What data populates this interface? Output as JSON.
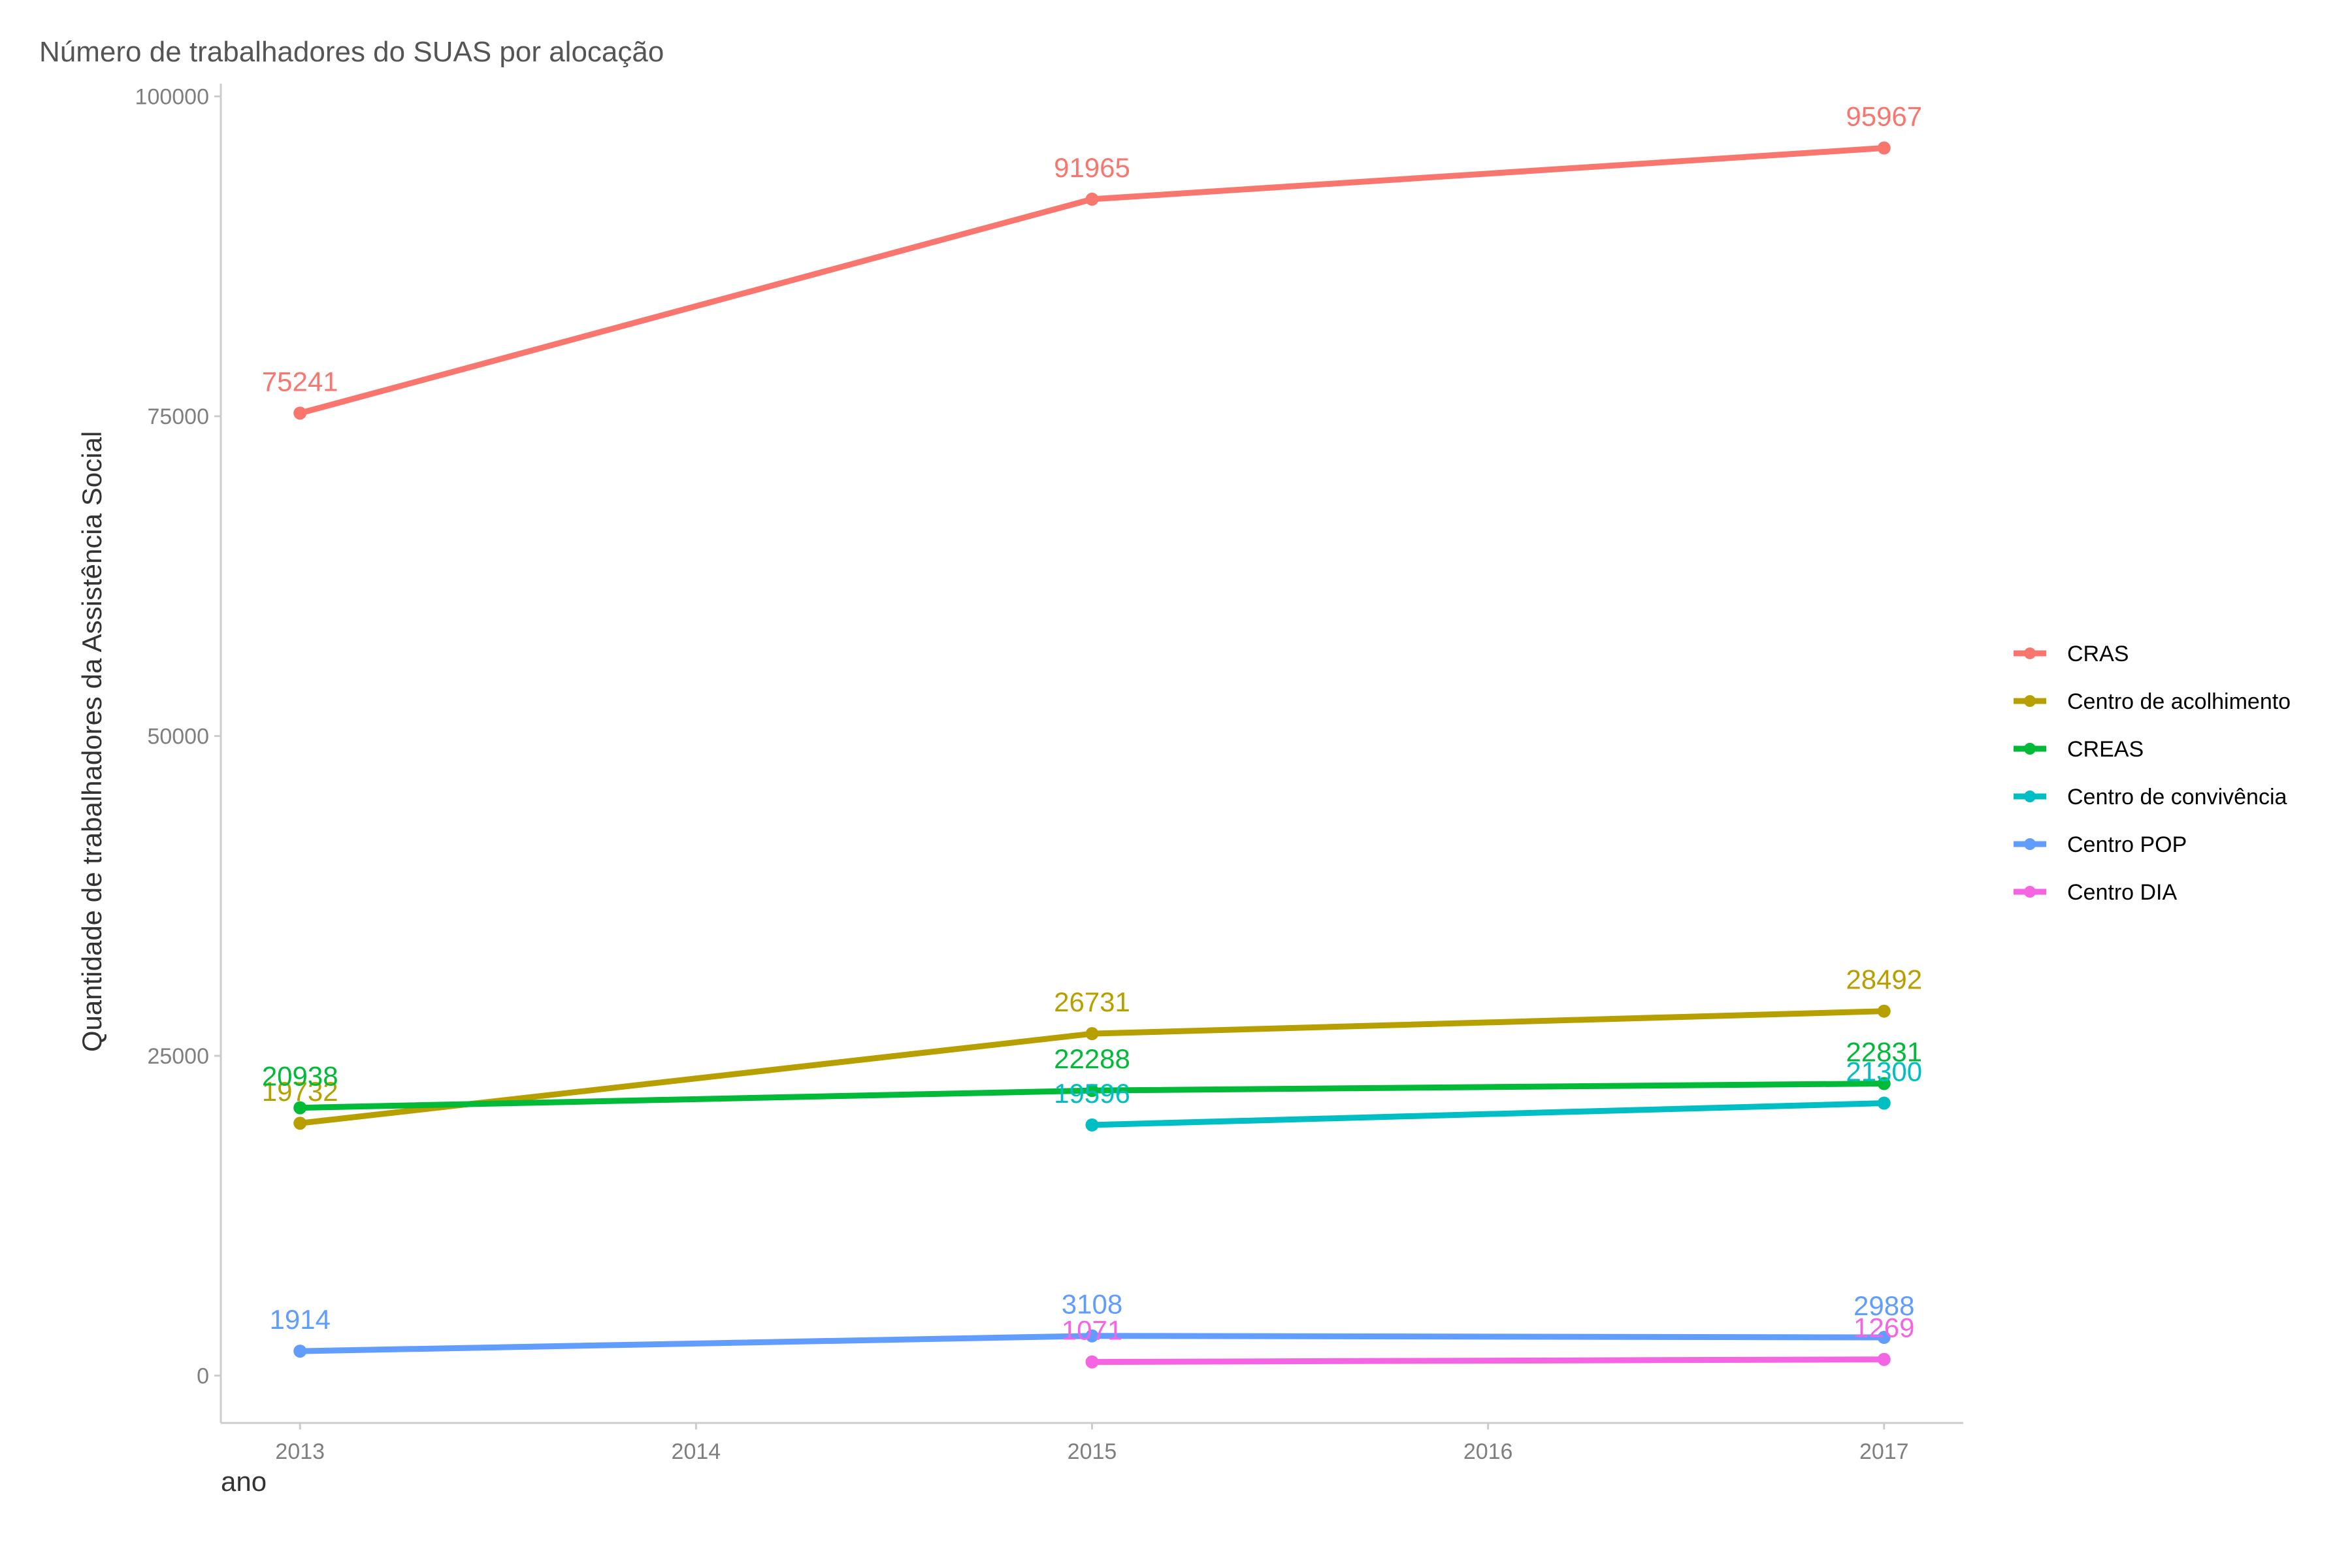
{
  "chart_data": {
    "type": "line",
    "title": "Número de trabalhadores do SUAS por alocação",
    "xlabel": "ano",
    "ylabel": "Quantidade de trabalhadores da Assistência Social",
    "xlim": [
      2012.8,
      2017.2
    ],
    "ylim": [
      -3700,
      101000
    ],
    "x_ticks": [
      "2013",
      "2014",
      "2015",
      "2016",
      "2017"
    ],
    "y_ticks": [
      "0",
      "25000",
      "50000",
      "75000",
      "100000"
    ],
    "grid": false,
    "legend_position": "right",
    "series": [
      {
        "name": "CRAS",
        "color": "#F8766D",
        "points": [
          {
            "x": 2013,
            "y": 75241
          },
          {
            "x": 2015,
            "y": 91965
          },
          {
            "x": 2017,
            "y": 95967
          }
        ]
      },
      {
        "name": "Centro de acolhimento",
        "color": "#B79F00",
        "points": [
          {
            "x": 2013,
            "y": 19732
          },
          {
            "x": 2015,
            "y": 26731
          },
          {
            "x": 2017,
            "y": 28492
          }
        ]
      },
      {
        "name": "CREAS",
        "color": "#00BA38",
        "points": [
          {
            "x": 2013,
            "y": 20938
          },
          {
            "x": 2015,
            "y": 22288
          },
          {
            "x": 2017,
            "y": 22831
          }
        ]
      },
      {
        "name": "Centro de convivência",
        "color": "#00BFC4",
        "points": [
          {
            "x": 2015,
            "y": 19596
          },
          {
            "x": 2017,
            "y": 21300
          }
        ]
      },
      {
        "name": "Centro POP",
        "color": "#619CFF",
        "points": [
          {
            "x": 2013,
            "y": 1914
          },
          {
            "x": 2015,
            "y": 3108
          },
          {
            "x": 2017,
            "y": 2988
          }
        ]
      },
      {
        "name": "Centro DIA",
        "color": "#F564E3",
        "points": [
          {
            "x": 2015,
            "y": 1071
          },
          {
            "x": 2017,
            "y": 1269
          }
        ]
      }
    ]
  }
}
